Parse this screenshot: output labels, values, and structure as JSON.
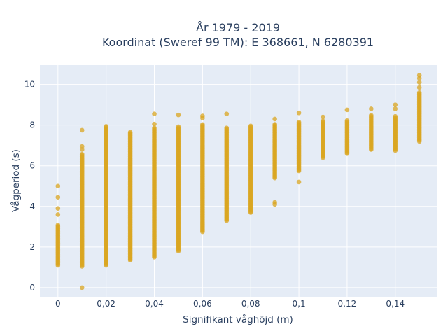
{
  "chart_data": {
    "type": "scatter",
    "title_line1": "År 1979 - 2019",
    "title_line2": "Koordinat (Sweref 99 TM): E 368661, N 6280391",
    "xlabel": "Signifikant våghöjd (m)",
    "ylabel": "Vågperiod (s)",
    "xlim": [
      -0.0075,
      0.1575
    ],
    "ylim": [
      -0.45,
      10.95
    ],
    "grid": true,
    "legend": "none",
    "colors": {
      "marker": "#DAA520",
      "plot_bg": "#E5ECF6",
      "grid": "#ffffff",
      "text": "#2a3f5f"
    },
    "x_ticks": [
      {
        "value": 0,
        "label": "0"
      },
      {
        "value": 0.02,
        "label": "0,02"
      },
      {
        "value": 0.04,
        "label": "0,04"
      },
      {
        "value": 0.06,
        "label": "0,06"
      },
      {
        "value": 0.08,
        "label": "0,08"
      },
      {
        "value": 0.1,
        "label": "0,1"
      },
      {
        "value": 0.12,
        "label": "0,12"
      },
      {
        "value": 0.14,
        "label": "0,14"
      }
    ],
    "y_ticks": [
      {
        "value": 0,
        "label": "0"
      },
      {
        "value": 2,
        "label": "2"
      },
      {
        "value": 4,
        "label": "4"
      },
      {
        "value": 6,
        "label": "6"
      },
      {
        "value": 8,
        "label": "8"
      },
      {
        "value": 10,
        "label": "10"
      }
    ],
    "columns": [
      {
        "x": 0,
        "ymin": 1.1,
        "ymax": 3.1,
        "outliers": [
          3.6,
          3.9,
          4.45,
          5.0
        ]
      },
      {
        "x": 0.01,
        "ymin": 1.05,
        "ymax": 6.6,
        "outliers": [
          0.0,
          6.8,
          6.95,
          7.75
        ]
      },
      {
        "x": 0.02,
        "ymin": 1.1,
        "ymax": 7.95,
        "outliers": []
      },
      {
        "x": 0.03,
        "ymin": 1.35,
        "ymax": 7.7,
        "outliers": []
      },
      {
        "x": 0.04,
        "ymin": 1.5,
        "ymax": 7.9,
        "outliers": [
          8.05,
          8.55
        ]
      },
      {
        "x": 0.05,
        "ymin": 1.8,
        "ymax": 7.95,
        "outliers": [
          8.5
        ]
      },
      {
        "x": 0.06,
        "ymin": 2.75,
        "ymax": 8.05,
        "outliers": [
          8.35,
          8.45
        ]
      },
      {
        "x": 0.07,
        "ymin": 3.3,
        "ymax": 7.9,
        "outliers": [
          8.55
        ]
      },
      {
        "x": 0.08,
        "ymin": 3.7,
        "ymax": 8.0,
        "outliers": []
      },
      {
        "x": 0.09,
        "ymin": 5.4,
        "ymax": 8.05,
        "outliers": [
          4.1,
          4.2,
          8.3
        ]
      },
      {
        "x": 0.1,
        "ymin": 5.75,
        "ymax": 8.15,
        "outliers": [
          5.2,
          8.6
        ]
      },
      {
        "x": 0.11,
        "ymin": 6.4,
        "ymax": 8.2,
        "outliers": [
          8.4
        ]
      },
      {
        "x": 0.12,
        "ymin": 6.6,
        "ymax": 8.25,
        "outliers": [
          8.75
        ]
      },
      {
        "x": 0.13,
        "ymin": 6.8,
        "ymax": 8.5,
        "outliers": [
          8.8
        ]
      },
      {
        "x": 0.14,
        "ymin": 6.75,
        "ymax": 8.45,
        "outliers": [
          8.8,
          9.0
        ]
      },
      {
        "x": 0.15,
        "ymin": 7.2,
        "ymax": 9.6,
        "outliers": [
          9.85,
          10.1,
          10.3,
          10.45
        ]
      }
    ]
  }
}
